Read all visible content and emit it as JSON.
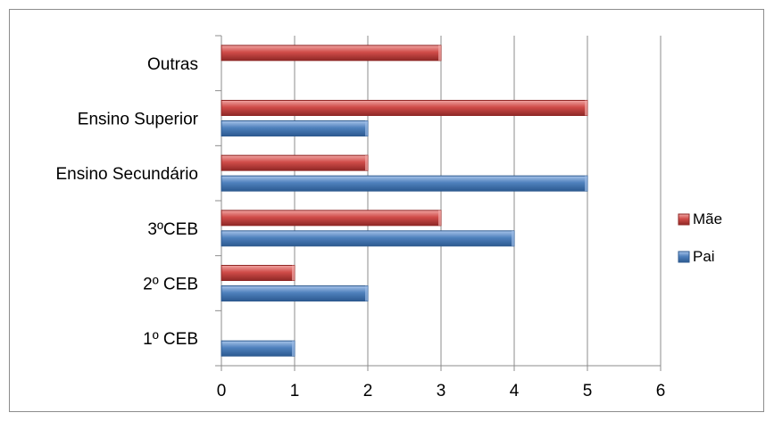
{
  "chart_data": {
    "type": "bar",
    "orientation": "horizontal",
    "categories": [
      "1º CEB",
      "2º CEB",
      "3ºCEB",
      "Ensino Secundário",
      "Ensino Superior",
      "Outras"
    ],
    "series": [
      {
        "name": "Pai",
        "color": "#4f81bd",
        "values": [
          1,
          2,
          4,
          5,
          2,
          0
        ]
      },
      {
        "name": "Mãe",
        "color": "#c0504d",
        "values": [
          0,
          1,
          3,
          2,
          5,
          3
        ]
      }
    ],
    "xlim": [
      0,
      6
    ],
    "xticks": [
      "0",
      "1",
      "2",
      "3",
      "4",
      "5",
      "6"
    ],
    "grid": "vertical",
    "legend": [
      "Mãe",
      "Pai"
    ],
    "legend_position": "right"
  }
}
